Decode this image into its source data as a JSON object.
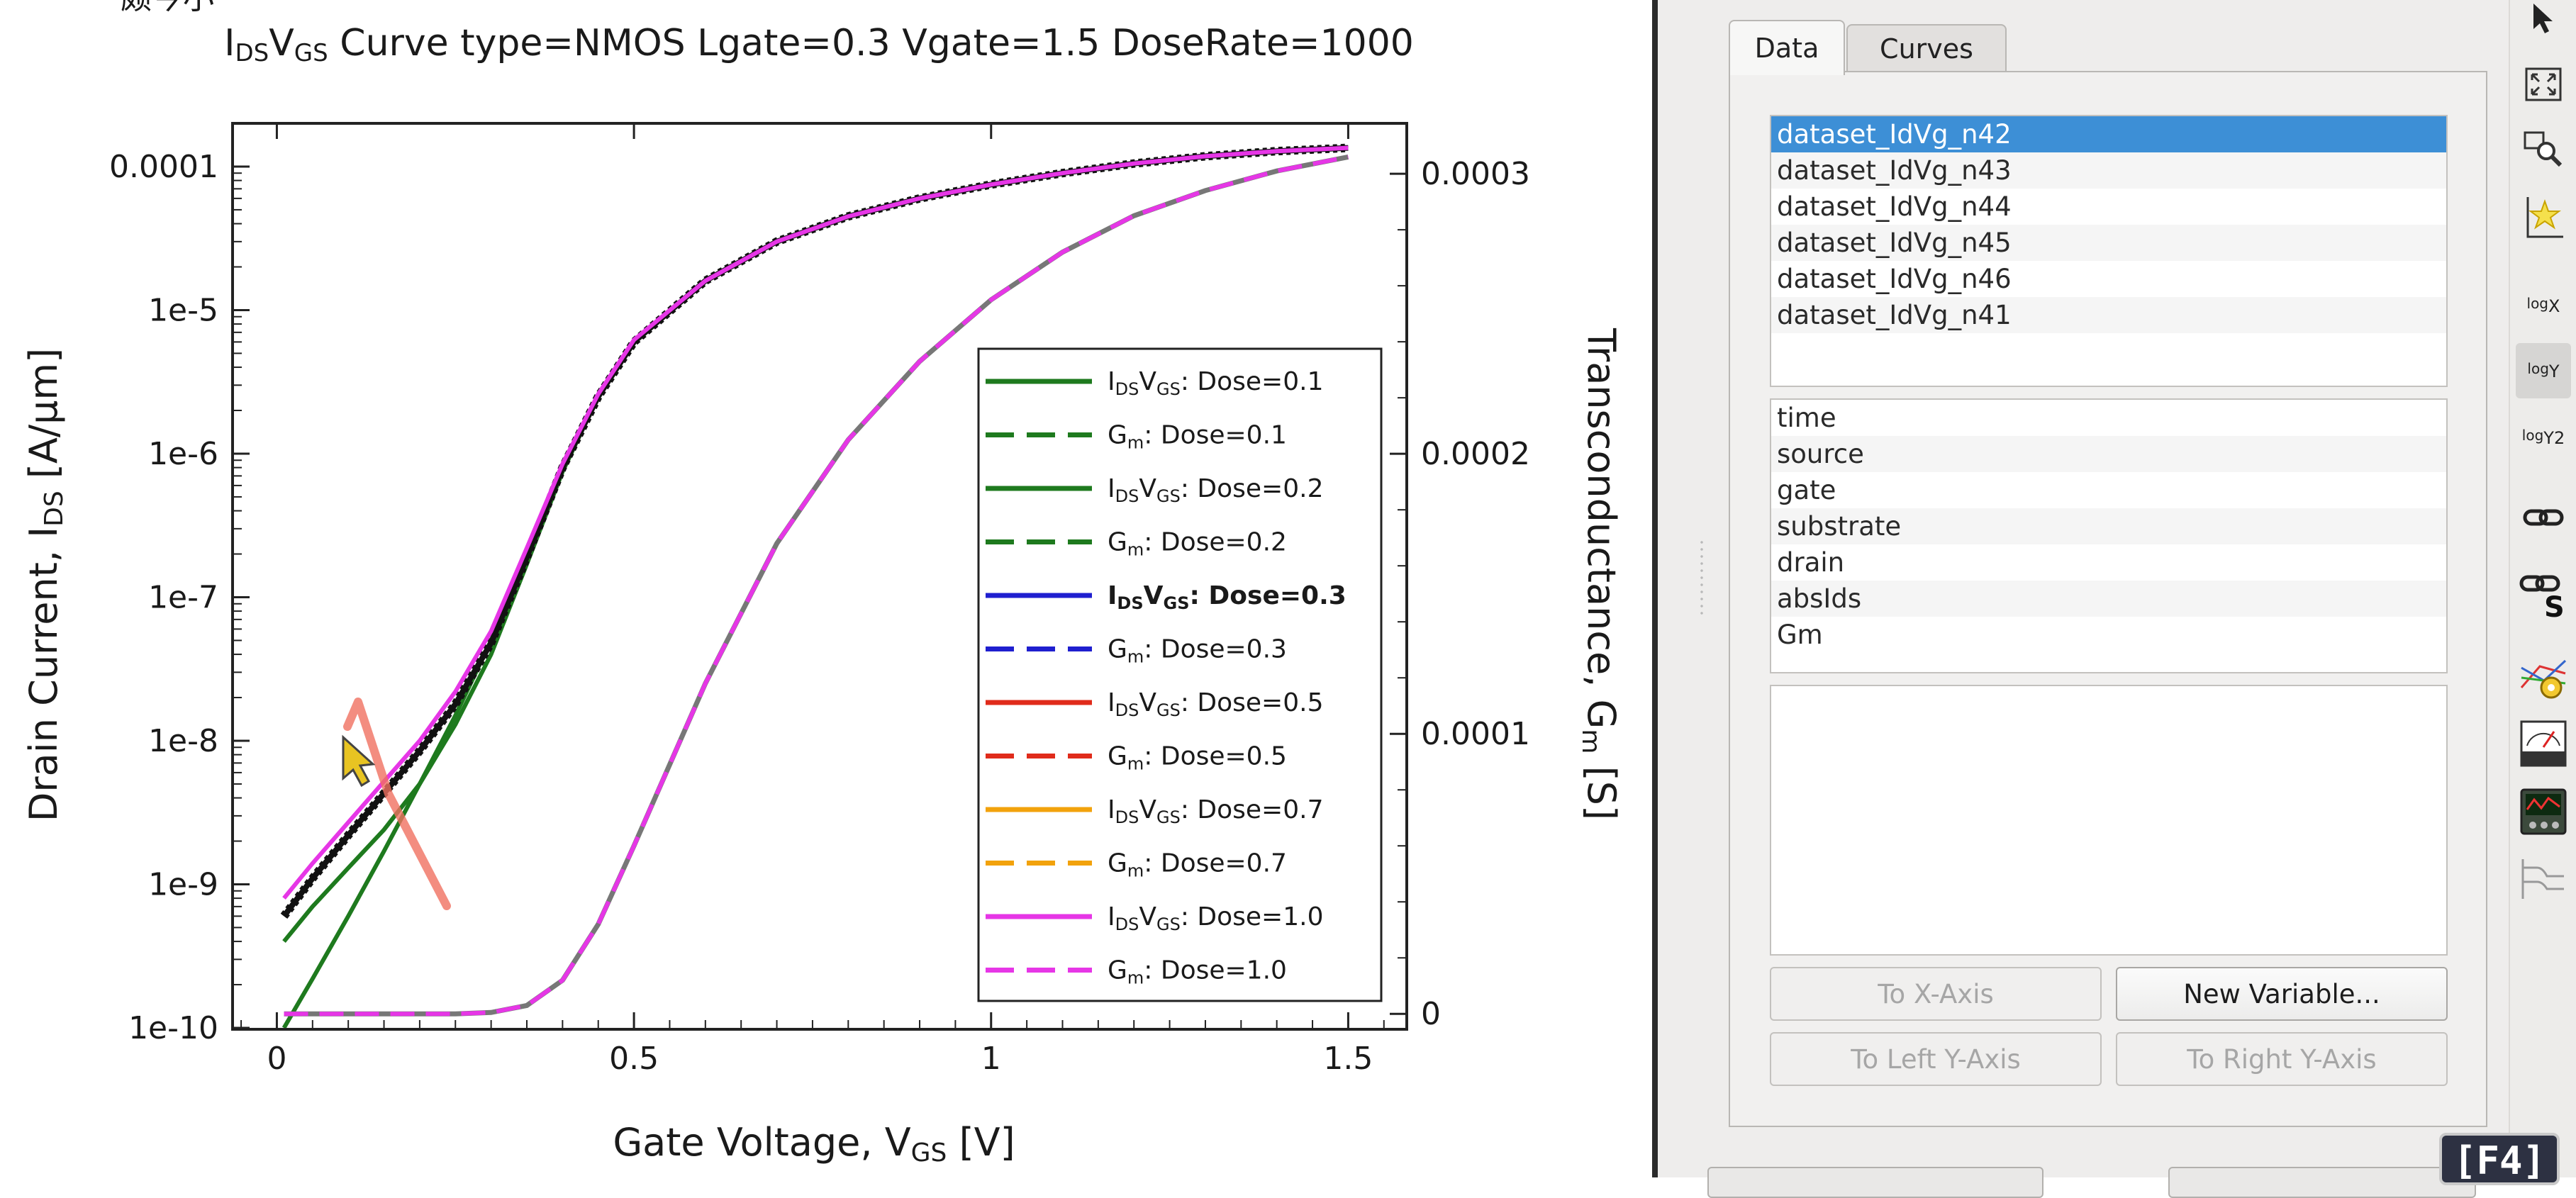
{
  "plot": {
    "top_partial_text": "颇今小",
    "title": "IDSVGS Curve type=NMOS Lgate=0.3 Vgate=1.5 DoseRate=1000",
    "xlabel": "Gate Voltage, VGS [V]",
    "ylabel_left": "Drain Current, IDS [A/μm]",
    "ylabel_right": "Transconductance, Gm [S]",
    "x_ticks": [
      "0",
      "0.5",
      "1",
      "1.5"
    ],
    "y_left_ticks": [
      "0.0001",
      "1e-5",
      "1e-6",
      "1e-7",
      "1e-8",
      "1e-9",
      "1e-10"
    ],
    "y_right_ticks": [
      "0.0003",
      "0.0002",
      "0.0001",
      "0"
    ],
    "legend": [
      {
        "label": "IDSVGS: Dose=0.1",
        "color": "#1e7a1e",
        "dash": false,
        "bold": false
      },
      {
        "label": "Gm: Dose=0.1",
        "color": "#1e7a1e",
        "dash": true,
        "bold": false
      },
      {
        "label": "IDSVGS: Dose=0.2",
        "color": "#1e7a1e",
        "dash": false,
        "bold": false
      },
      {
        "label": "Gm: Dose=0.2",
        "color": "#1e7a1e",
        "dash": true,
        "bold": false
      },
      {
        "label": "IDSVGS: Dose=0.3",
        "color": "#1f1fcf",
        "dash": false,
        "bold": true
      },
      {
        "label": "Gm: Dose=0.3",
        "color": "#1f1fcf",
        "dash": true,
        "bold": false
      },
      {
        "label": "IDSVGS: Dose=0.5",
        "color": "#e02b1b",
        "dash": false,
        "bold": false
      },
      {
        "label": "Gm: Dose=0.5",
        "color": "#e02b1b",
        "dash": true,
        "bold": false
      },
      {
        "label": "IDSVGS: Dose=0.7",
        "color": "#f2a20c",
        "dash": false,
        "bold": false
      },
      {
        "label": "Gm: Dose=0.7",
        "color": "#f2a20c",
        "dash": true,
        "bold": false
      },
      {
        "label": "IDSVGS: Dose=1.0",
        "color": "#e636e6",
        "dash": false,
        "bold": false
      },
      {
        "label": "Gm: Dose=1.0",
        "color": "#e636e6",
        "dash": true,
        "bold": false
      }
    ]
  },
  "chart_data": {
    "type": "line",
    "title": "IDSVGS Curve type=NMOS Lgate=0.3 Vgate=1.5 DoseRate=1000",
    "xlabel": "Gate Voltage, VGS [V]",
    "ylabel": "Drain Current, IDS [A/μm]",
    "y2label": "Transconductance, Gm [S]",
    "xlim": [
      -0.06,
      1.58
    ],
    "ylim_log": [
      1e-10,
      0.0002
    ],
    "y2lim": [
      -5e-06,
      0.000318
    ],
    "y_scale": "log",
    "legend_position": "right-center",
    "x": [
      0.01,
      0.05,
      0.1,
      0.15,
      0.2,
      0.25,
      0.3,
      0.35,
      0.4,
      0.45,
      0.5,
      0.6,
      0.7,
      0.8,
      0.9,
      1.0,
      1.1,
      1.2,
      1.3,
      1.4,
      1.5
    ],
    "series": [
      {
        "name": "IDSVGS: Dose=0.1",
        "axis": "left",
        "values": [
          1e-10,
          2.2e-10,
          6e-10,
          1.7e-09,
          5e-09,
          1.5e-08,
          5e-08,
          2e-07,
          8e-07,
          2.5e-06,
          6e-06,
          1.6e-05,
          3e-05,
          4.5e-05,
          6e-05,
          7.5e-05,
          9e-05,
          0.000105,
          0.000118,
          0.000128,
          0.000135
        ]
      },
      {
        "name": "IDSVGS: Dose=0.2",
        "axis": "left",
        "values": [
          4e-10,
          7e-10,
          1.3e-09,
          2.4e-09,
          5e-09,
          1.3e-08,
          4e-08,
          1.7e-07,
          7.5e-07,
          2.5e-06,
          6e-06,
          1.6e-05,
          3e-05,
          4.5e-05,
          6e-05,
          7.5e-05,
          9e-05,
          0.000105,
          0.000118,
          0.000128,
          0.000135
        ]
      },
      {
        "name": "IDSVGS: Dose=0.3",
        "axis": "left",
        "values": [
          6e-10,
          1.1e-09,
          2.2e-09,
          4.3e-09,
          8.5e-09,
          1.8e-08,
          4.8e-08,
          1.9e-07,
          8e-07,
          2.5e-06,
          6e-06,
          1.6e-05,
          3e-05,
          4.5e-05,
          6e-05,
          7.5e-05,
          9e-05,
          0.000105,
          0.000118,
          0.000128,
          0.000135
        ]
      },
      {
        "name": "IDSVGS: Dose=1.0",
        "axis": "left",
        "values": [
          8e-10,
          1.4e-09,
          2.7e-09,
          5.2e-09,
          1e-08,
          2.2e-08,
          5.8e-08,
          2.2e-07,
          8.5e-07,
          2.6e-06,
          6.2e-06,
          1.6e-05,
          3e-05,
          4.5e-05,
          6e-05,
          7.5e-05,
          9e-05,
          0.000105,
          0.000118,
          0.000128,
          0.000135
        ]
      },
      {
        "name": "Gm: Dose=1.0",
        "axis": "right",
        "values": [
          0.0,
          0.0,
          0.0,
          0.0,
          0.0,
          0.0,
          5e-07,
          3e-06,
          1.2e-05,
          3.2e-05,
          6e-05,
          0.000118,
          0.000168,
          0.000205,
          0.000233,
          0.000255,
          0.000272,
          0.000285,
          0.000294,
          0.000301,
          0.000306
        ]
      }
    ]
  },
  "side_panel": {
    "tabs": [
      "Data",
      "Curves"
    ],
    "datasets": [
      "dataset_IdVg_n42",
      "dataset_IdVg_n43",
      "dataset_IdVg_n44",
      "dataset_IdVg_n45",
      "dataset_IdVg_n46",
      "dataset_IdVg_n41"
    ],
    "selected_dataset": 0,
    "variables": [
      "time",
      "source",
      "gate",
      "substrate",
      "drain",
      "absIds",
      "Gm"
    ],
    "buttons": {
      "to_x_axis": "To X-Axis",
      "new_variable": "New Variable...",
      "to_left_y": "To Left Y-Axis",
      "to_right_y": "To Right Y-Axis"
    }
  },
  "toolbar": {
    "tools": [
      "select-arrow-icon",
      "fit-view-icon",
      "zoom-icon",
      "star-axis-icon",
      "log-x-icon",
      "log-y-icon",
      "log-y2-icon",
      "link-icon",
      "link-s-icon",
      "curve-settings-icon",
      "meter-icon",
      "oscilloscope-icon",
      "waveform-icon"
    ],
    "log_x_label": "log X",
    "log_y_label": "log Y",
    "log_y2_label": "log Y2",
    "link_s_label": "S"
  },
  "badge": "[F4]"
}
